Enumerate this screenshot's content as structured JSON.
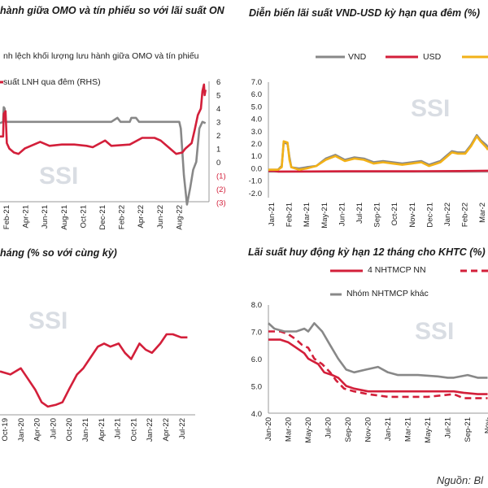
{
  "colors": {
    "red": "#d31f3a",
    "gray": "#888888",
    "yellow": "#f2b118",
    "watermark": "#d9dde3"
  },
  "watermark": "SSI",
  "source": "Nguồn: Bl",
  "chart_data": [
    {
      "id": "omo",
      "type": "line",
      "title": "hành giữa OMO và tín phiếu so với lãi suất ON",
      "legend": [
        "nh lệch khối lượng lưu hành giữa OMO và tín phiếu",
        "suất LNH qua đêm (RHS)"
      ],
      "x_ticks": [
        "Feb-21",
        "Apr-21",
        "Jun-21",
        "Aug-21",
        "Oct-21",
        "Dec-21",
        "Feb-22",
        "Apr-22",
        "Jun-22",
        "Aug-22"
      ],
      "rhs_ticks": [
        "6",
        "5",
        "4",
        "3",
        "2",
        "1",
        "0",
        "(1)",
        "(2)",
        "(3)"
      ],
      "rhs_ylim": [
        -3,
        6
      ],
      "series": [
        {
          "color": "gray",
          "points": [
            [
              0,
              2.9
            ],
            [
              0.1,
              3.0
            ],
            [
              0.12,
              4.1
            ],
            [
              0.15,
              4.0
            ],
            [
              0.18,
              3.0
            ],
            [
              1.6,
              3.0
            ],
            [
              3.6,
              3.0
            ],
            [
              3.8,
              3.3
            ],
            [
              3.9,
              3.0
            ],
            [
              4.2,
              3.0
            ],
            [
              4.25,
              3.3
            ],
            [
              4.4,
              3.3
            ],
            [
              4.5,
              3.0
            ],
            [
              5.8,
              3.0
            ],
            [
              5.85,
              2.5
            ],
            [
              5.95,
              -1.0
            ],
            [
              6.05,
              -3.2
            ],
            [
              6.15,
              -2.0
            ],
            [
              6.25,
              -0.6
            ],
            [
              6.35,
              0.0
            ],
            [
              6.45,
              2.5
            ],
            [
              6.55,
              3.0
            ],
            [
              6.65,
              2.9
            ]
          ]
        },
        {
          "color": "red",
          "points": [
            [
              0,
              1.9
            ],
            [
              0.1,
              1.9
            ],
            [
              0.12,
              3.6
            ],
            [
              0.18,
              3.8
            ],
            [
              0.22,
              1.4
            ],
            [
              0.3,
              1.0
            ],
            [
              0.45,
              0.7
            ],
            [
              0.6,
              0.6
            ],
            [
              0.8,
              1.0
            ],
            [
              1.0,
              1.2
            ],
            [
              1.3,
              1.5
            ],
            [
              1.6,
              1.2
            ],
            [
              2.0,
              1.3
            ],
            [
              2.4,
              1.3
            ],
            [
              2.8,
              1.2
            ],
            [
              3.0,
              1.1
            ],
            [
              3.4,
              1.6
            ],
            [
              3.6,
              1.2
            ],
            [
              4.2,
              1.3
            ],
            [
              4.6,
              1.8
            ],
            [
              5.0,
              1.8
            ],
            [
              5.2,
              1.6
            ],
            [
              5.5,
              1.0
            ],
            [
              5.7,
              0.6
            ],
            [
              5.9,
              0.7
            ],
            [
              6.0,
              1.0
            ],
            [
              6.2,
              1.4
            ],
            [
              6.3,
              2.4
            ],
            [
              6.4,
              3.5
            ],
            [
              6.5,
              4.0
            ],
            [
              6.55,
              5.3
            ],
            [
              6.6,
              5.8
            ],
            [
              6.62,
              5.0
            ],
            [
              6.65,
              5.4
            ]
          ]
        }
      ]
    },
    {
      "id": "vnd-usd",
      "type": "line",
      "title": "Diễn biến lãi suất VND-USD kỳ hạn qua đêm (%)",
      "legend": [
        "VND",
        "USD"
      ],
      "y_ticks": [
        "7.0",
        "6.0",
        "5.0",
        "4.0",
        "3.0",
        "2.0",
        "1.0",
        "0.0",
        "-1.0",
        "-2.0"
      ],
      "ylim": [
        -2,
        7
      ],
      "x_ticks": [
        "Jan-21",
        "Feb-21",
        "Mar-21",
        "May-21",
        "Jun-21",
        "Jul-21",
        "Sep-21",
        "Oct-21",
        "Nov-21",
        "Dec-21",
        "Jan-22",
        "Feb-22",
        "Mar-2"
      ],
      "series": [
        {
          "name": "VND",
          "color": "gray",
          "points": [
            [
              0,
              0.2
            ],
            [
              0.5,
              0.2
            ],
            [
              0.7,
              0.5
            ],
            [
              0.8,
              2.4
            ],
            [
              1.0,
              2.3
            ],
            [
              1.1,
              1.2
            ],
            [
              1.2,
              0.4
            ],
            [
              1.6,
              0.3
            ],
            [
              2.0,
              0.4
            ],
            [
              2.5,
              0.5
            ],
            [
              3.0,
              1.1
            ],
            [
              3.5,
              1.4
            ],
            [
              4.0,
              1.0
            ],
            [
              4.5,
              1.2
            ],
            [
              5.0,
              1.1
            ],
            [
              5.5,
              0.8
            ],
            [
              6.0,
              0.9
            ],
            [
              6.5,
              0.8
            ],
            [
              7.0,
              0.7
            ],
            [
              7.5,
              0.8
            ],
            [
              8.0,
              0.9
            ],
            [
              8.4,
              0.6
            ],
            [
              8.8,
              0.8
            ],
            [
              9.0,
              0.9
            ],
            [
              9.3,
              1.3
            ],
            [
              9.6,
              1.7
            ],
            [
              9.9,
              1.6
            ],
            [
              10.3,
              1.6
            ],
            [
              10.6,
              2.2
            ],
            [
              10.9,
              3.0
            ],
            [
              11.1,
              2.6
            ],
            [
              11.4,
              2.2
            ],
            [
              11.6,
              2.0
            ]
          ]
        },
        {
          "name": "USD",
          "color": "red",
          "points": [
            [
              0,
              0.1
            ],
            [
              0.3,
              0.1
            ],
            [
              0.5,
              0.05
            ],
            [
              2.0,
              0.06
            ],
            [
              4.0,
              0.07
            ],
            [
              6.0,
              0.07
            ],
            [
              8.0,
              0.08
            ],
            [
              10.0,
              0.09
            ],
            [
              11.6,
              0.12
            ]
          ]
        },
        {
          "name": "",
          "color": "yellow",
          "points": [
            [
              0,
              0.2
            ],
            [
              0.5,
              0.2
            ],
            [
              0.7,
              0.4
            ],
            [
              0.8,
              2.5
            ],
            [
              1.0,
              2.4
            ],
            [
              1.1,
              1.0
            ],
            [
              1.2,
              0.4
            ],
            [
              1.6,
              0.2
            ],
            [
              2.0,
              0.3
            ],
            [
              2.5,
              0.5
            ],
            [
              3.0,
              1.0
            ],
            [
              3.5,
              1.3
            ],
            [
              4.0,
              0.9
            ],
            [
              4.5,
              1.1
            ],
            [
              5.0,
              1.0
            ],
            [
              5.5,
              0.7
            ],
            [
              6.0,
              0.8
            ],
            [
              6.5,
              0.7
            ],
            [
              7.0,
              0.6
            ],
            [
              7.5,
              0.7
            ],
            [
              8.0,
              0.8
            ],
            [
              8.4,
              0.5
            ],
            [
              8.8,
              0.7
            ],
            [
              9.0,
              0.8
            ],
            [
              9.3,
              1.2
            ],
            [
              9.6,
              1.6
            ],
            [
              9.9,
              1.5
            ],
            [
              10.3,
              1.5
            ],
            [
              10.6,
              2.1
            ],
            [
              10.9,
              2.9
            ],
            [
              11.1,
              2.5
            ],
            [
              11.4,
              2.0
            ],
            [
              11.6,
              1.8
            ]
          ]
        }
      ]
    },
    {
      "id": "growth",
      "type": "line",
      "title": "háng (% so với cùng kỳ)",
      "x_ticks": [
        "Oct-19",
        "Jan-20",
        "Apr-20",
        "Jul-20",
        "Oct-20",
        "Jan-21",
        "Apr-21",
        "Jul-21",
        "Oct-21",
        "Jan-22",
        "Apr-22",
        "Jul-22"
      ],
      "series": [
        {
          "color": "red",
          "points": [
            [
              0,
              14.0
            ],
            [
              0.5,
              13.5
            ],
            [
              1.0,
              14.5
            ],
            [
              1.3,
              13.0
            ],
            [
              1.7,
              11.0
            ],
            [
              2.0,
              9.0
            ],
            [
              2.3,
              8.3
            ],
            [
              2.7,
              8.6
            ],
            [
              3.0,
              9.0
            ],
            [
              3.3,
              11.0
            ],
            [
              3.7,
              13.5
            ],
            [
              4.0,
              14.5
            ],
            [
              4.3,
              16.0
            ],
            [
              4.7,
              18.0
            ],
            [
              5.0,
              18.5
            ],
            [
              5.3,
              18.0
            ],
            [
              5.7,
              18.5
            ],
            [
              6.0,
              17.0
            ],
            [
              6.3,
              16.0
            ],
            [
              6.7,
              18.5
            ],
            [
              7.0,
              17.5
            ],
            [
              7.3,
              17.0
            ],
            [
              7.7,
              18.5
            ],
            [
              8.0,
              20.0
            ],
            [
              8.3,
              20.0
            ],
            [
              8.7,
              19.5
            ],
            [
              9.0,
              19.5
            ]
          ]
        }
      ]
    },
    {
      "id": "deposit",
      "type": "line",
      "title": "Lãi suất huy động kỳ hạn 12 tháng cho KHTC (%)",
      "legend": [
        "4 NHTMCP NN",
        "",
        "Nhóm NHTMCP khác"
      ],
      "y_ticks": [
        "8.0",
        "7.0",
        "6.0",
        "5.0",
        "4.0"
      ],
      "ylim": [
        4,
        8
      ],
      "x_ticks": [
        "Jan-20",
        "Mar-20",
        "May-20",
        "Jul-20",
        "Sep-20",
        "Nov-20",
        "Jan-21",
        "Mar-21",
        "May-21",
        "Jul-21",
        "Sep-21",
        "Nov-"
      ],
      "series": [
        {
          "name": "4 NHTMCP NN",
          "color": "red",
          "dash": "solid",
          "points": [
            [
              0,
              6.7
            ],
            [
              0.6,
              6.7
            ],
            [
              1.0,
              6.6
            ],
            [
              1.4,
              6.4
            ],
            [
              1.8,
              6.2
            ],
            [
              2.0,
              6.0
            ],
            [
              2.5,
              5.8
            ],
            [
              2.8,
              5.5
            ],
            [
              3.2,
              5.4
            ],
            [
              3.5,
              5.3
            ],
            [
              3.9,
              5.0
            ],
            [
              4.3,
              4.9
            ],
            [
              5.0,
              4.8
            ],
            [
              6.0,
              4.8
            ],
            [
              8.0,
              4.8
            ],
            [
              9.3,
              4.8
            ],
            [
              9.8,
              4.75
            ],
            [
              10.5,
              4.7
            ],
            [
              11.0,
              4.7
            ]
          ]
        },
        {
          "name": "",
          "color": "red",
          "dash": "dashed",
          "points": [
            [
              0,
              7.0
            ],
            [
              0.6,
              7.0
            ],
            [
              1.0,
              6.9
            ],
            [
              1.4,
              6.7
            ],
            [
              1.7,
              6.5
            ],
            [
              2.0,
              6.4
            ],
            [
              2.3,
              6.0
            ],
            [
              2.7,
              5.8
            ],
            [
              3.1,
              5.5
            ],
            [
              3.4,
              5.2
            ],
            [
              3.8,
              4.9
            ],
            [
              4.3,
              4.8
            ],
            [
              5.0,
              4.7
            ],
            [
              6.0,
              4.6
            ],
            [
              8.0,
              4.6
            ],
            [
              9.3,
              4.7
            ],
            [
              9.8,
              4.55
            ],
            [
              10.5,
              4.55
            ],
            [
              11.0,
              4.55
            ]
          ]
        },
        {
          "name": "Nhóm NHTMCP khác",
          "color": "gray",
          "dash": "solid",
          "points": [
            [
              0,
              7.3
            ],
            [
              0.3,
              7.1
            ],
            [
              0.8,
              7.0
            ],
            [
              1.4,
              7.0
            ],
            [
              1.8,
              7.1
            ],
            [
              2.0,
              7.0
            ],
            [
              2.3,
              7.3
            ],
            [
              2.7,
              7.0
            ],
            [
              3.1,
              6.5
            ],
            [
              3.5,
              6.0
            ],
            [
              3.9,
              5.6
            ],
            [
              4.3,
              5.5
            ],
            [
              4.9,
              5.6
            ],
            [
              5.5,
              5.7
            ],
            [
              6.0,
              5.5
            ],
            [
              6.5,
              5.4
            ],
            [
              7.5,
              5.4
            ],
            [
              8.5,
              5.35
            ],
            [
              9.0,
              5.3
            ],
            [
              9.3,
              5.3
            ],
            [
              10.0,
              5.4
            ],
            [
              10.5,
              5.3
            ],
            [
              11.0,
              5.3
            ]
          ]
        }
      ]
    }
  ]
}
